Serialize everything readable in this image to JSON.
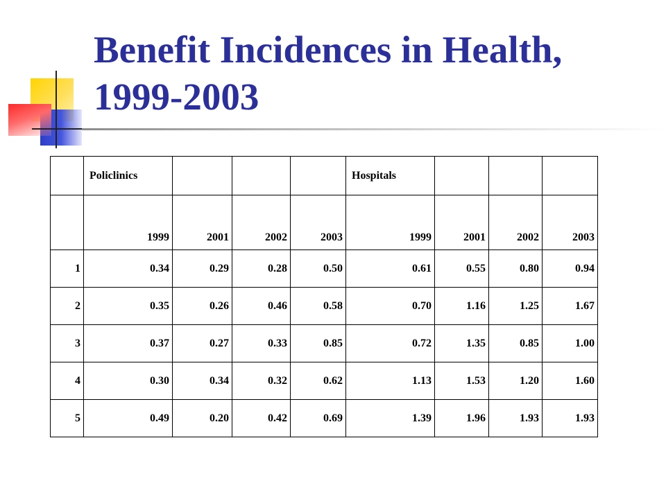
{
  "slide": {
    "title": "Benefit Incidences in Health, 1999-2003"
  },
  "table": {
    "group_headers": [
      "",
      "Policlinics",
      "",
      "",
      "",
      "Hospitals",
      "",
      "",
      ""
    ],
    "year_headers": [
      "",
      "1999",
      "2001",
      "2002",
      "2003",
      "1999",
      "2001",
      "2002",
      "2003"
    ],
    "rows": [
      [
        "1",
        "0.34",
        "0.29",
        "0.28",
        "0.50",
        "0.61",
        "0.55",
        "0.80",
        "0.94"
      ],
      [
        "2",
        "0.35",
        "0.26",
        "0.46",
        "0.58",
        "0.70",
        "1.16",
        "1.25",
        "1.67"
      ],
      [
        "3",
        "0.37",
        "0.27",
        "0.33",
        "0.85",
        "0.72",
        "1.35",
        "0.85",
        "1.00"
      ],
      [
        "4",
        "0.30",
        "0.34",
        "0.32",
        "0.62",
        "1.13",
        "1.53",
        "1.20",
        "1.60"
      ],
      [
        "5",
        "0.49",
        "0.20",
        "0.42",
        "0.69",
        "1.39",
        "1.96",
        "1.93",
        "1.93"
      ]
    ]
  }
}
